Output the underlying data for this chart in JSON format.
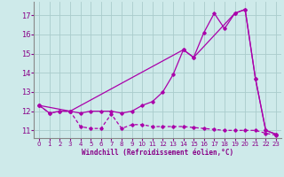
{
  "xlabel": "Windchill (Refroidissement éolien,°C)",
  "background_color": "#ceeaea",
  "grid_color": "#aacccc",
  "line_color": "#aa00aa",
  "xlim": [
    -0.5,
    23.5
  ],
  "ylim": [
    10.6,
    17.7
  ],
  "yticks": [
    11,
    12,
    13,
    14,
    15,
    16,
    17
  ],
  "xticks": [
    0,
    1,
    2,
    3,
    4,
    5,
    6,
    7,
    8,
    9,
    10,
    11,
    12,
    13,
    14,
    15,
    16,
    17,
    18,
    19,
    20,
    21,
    22,
    23
  ],
  "line1_x": [
    0,
    1,
    2,
    3,
    4,
    5,
    6,
    7,
    8,
    9,
    10,
    11,
    12,
    13,
    14,
    15,
    16,
    17,
    18,
    19,
    20,
    21,
    22,
    23
  ],
  "line1_y": [
    12.3,
    11.9,
    12.0,
    12.0,
    11.9,
    12.0,
    12.0,
    12.0,
    11.9,
    12.0,
    12.3,
    12.5,
    13.0,
    13.9,
    15.2,
    14.8,
    16.1,
    17.1,
    16.3,
    17.1,
    17.3,
    13.7,
    11.0,
    10.8
  ],
  "line2_x": [
    0,
    1,
    2,
    3,
    4,
    5,
    6,
    7,
    8,
    9,
    10,
    11,
    12,
    13,
    14,
    15,
    16,
    17,
    18,
    19,
    20,
    21,
    22,
    23
  ],
  "line2_y": [
    12.3,
    11.9,
    12.0,
    12.0,
    11.2,
    11.1,
    11.1,
    11.85,
    11.1,
    11.3,
    11.3,
    11.2,
    11.2,
    11.2,
    11.2,
    11.15,
    11.1,
    11.05,
    11.0,
    11.0,
    11.0,
    11.0,
    10.85,
    10.75
  ],
  "line3_x": [
    0,
    3,
    14,
    15,
    19,
    20,
    21,
    22,
    23
  ],
  "line3_y": [
    12.3,
    12.0,
    15.2,
    14.8,
    17.1,
    17.3,
    13.7,
    11.0,
    10.8
  ]
}
